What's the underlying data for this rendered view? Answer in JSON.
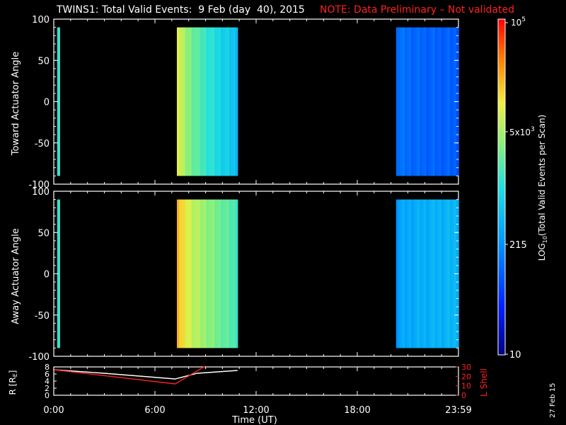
{
  "header": {
    "title": "TWINS1: Total Valid Events:  9 Feb (day  40), 2015",
    "note": "NOTE: Data Preliminary – Not validated",
    "note_color": "#ff2020",
    "stamp": "27 Feb 15"
  },
  "panels": [
    {
      "ylabel": "Toward Actuator Angle",
      "yticks": [
        "100",
        "50",
        "0",
        "-50",
        "-100"
      ]
    },
    {
      "ylabel": "Away Actuator Angle",
      "yticks": [
        "100",
        "50",
        "0",
        "-50",
        "-100"
      ]
    }
  ],
  "colorbar": {
    "label": "LOG10(Total Valid Events per Scan)",
    "tick_labels": [
      "10^5",
      "5x10^3",
      "215",
      "10"
    ],
    "scale": "log",
    "colors": [
      "#000080",
      "#0020ff",
      "#00a0ff",
      "#20e0e0",
      "#80f080",
      "#f0f040",
      "#ff8000",
      "#ff0000"
    ]
  },
  "orbit": {
    "yticks_left": [
      "8",
      "6",
      "4",
      "2",
      "0"
    ],
    "left_label": "R [RE]",
    "yticks_right": [
      "30",
      "20",
      "10",
      "0"
    ],
    "right_label": "L Shell",
    "right_color": "#ff2020"
  },
  "xaxis": {
    "ticks": [
      "0:00",
      "6:00",
      "12:00",
      "18:00",
      "23:59"
    ],
    "label": "Time (UT)"
  },
  "chart_data": {
    "type": "heatmap",
    "x_unit": "hours UT",
    "xlim": [
      0,
      24
    ],
    "ylim": [
      -100,
      100
    ],
    "segments": [
      {
        "panel": 0,
        "t0": 0.2,
        "t1": 0.35,
        "intensity": 0.55,
        "note": "thin strip"
      },
      {
        "panel": 0,
        "t0": 7.3,
        "t1": 10.9,
        "intensity_start": 0.78,
        "intensity_end": 0.42
      },
      {
        "panel": 0,
        "t0": 20.3,
        "t1": 24.0,
        "intensity_start": 0.28,
        "intensity_end": 0.24
      },
      {
        "panel": 1,
        "t0": 0.2,
        "t1": 0.35,
        "intensity": 0.55
      },
      {
        "panel": 1,
        "t0": 7.3,
        "t1": 10.9,
        "intensity_start": 0.85,
        "intensity_end": 0.55
      },
      {
        "panel": 1,
        "t0": 20.3,
        "t1": 24.0,
        "intensity_start": 0.35,
        "intensity_end": 0.4
      }
    ],
    "orbit_series": [
      {
        "name": "R",
        "axis": "left",
        "color": "#ffffff",
        "t": [
          0,
          3,
          7.2,
          8.5,
          10.9
        ],
        "values": [
          7.2,
          6.2,
          4.6,
          6.2,
          7.0
        ]
      },
      {
        "name": "L Shell",
        "axis": "right",
        "color": "#ff2020",
        "t": [
          0,
          7.2,
          9.0
        ],
        "values": [
          27,
          12,
          31
        ]
      }
    ]
  }
}
